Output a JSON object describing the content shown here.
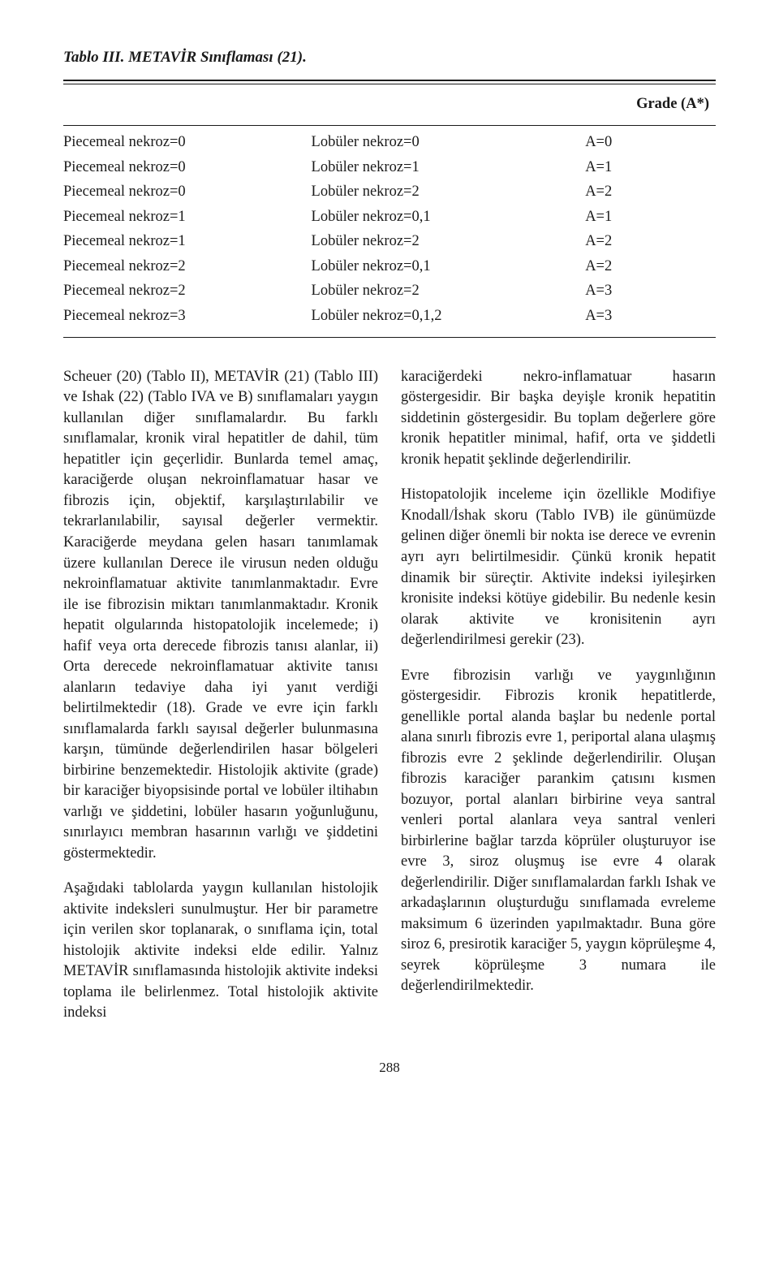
{
  "table": {
    "title_bold": "Tablo III.",
    "title_rest": " METAVİR Sınıflaması (21).",
    "grade_header": "Grade (A*)",
    "rows": [
      {
        "c1": "Piecemeal nekroz=0",
        "c2": "Lobüler nekroz=0",
        "c3": "A=0"
      },
      {
        "c1": "Piecemeal nekroz=0",
        "c2": "Lobüler nekroz=1",
        "c3": "A=1"
      },
      {
        "c1": "Piecemeal nekroz=0",
        "c2": "Lobüler nekroz=2",
        "c3": "A=2"
      },
      {
        "c1": "Piecemeal nekroz=1",
        "c2": "Lobüler nekroz=0,1",
        "c3": "A=1"
      },
      {
        "c1": "Piecemeal nekroz=1",
        "c2": "Lobüler nekroz=2",
        "c3": "A=2"
      },
      {
        "c1": "Piecemeal nekroz=2",
        "c2": "Lobüler nekroz=0,1",
        "c3": "A=2"
      },
      {
        "c1": "Piecemeal nekroz=2",
        "c2": "Lobüler nekroz=2",
        "c3": "A=3"
      },
      {
        "c1": "Piecemeal nekroz=3",
        "c2": "Lobüler nekroz=0,1,2",
        "c3": "A=3"
      }
    ]
  },
  "body": {
    "left": {
      "p1": "Scheuer (20) (Tablo II), METAVİR (21) (Tablo III) ve Ishak (22) (Tablo IVA ve B) sınıflamaları yaygın kullanılan diğer sınıflamalardır. Bu farklı sınıflamalar, kronik viral hepatitler de dahil, tüm hepatitler için geçerlidir. Bunlarda temel amaç, karaciğerde oluşan nekroinflamatuar hasar ve fibrozis için, objektif, karşılaştırılabilir ve tekrarlanılabilir, sayısal değerler vermektir. Karaciğerde meydana gelen hasarı tanımlamak üzere kullanılan Derece ile virusun neden olduğu nekroinflamatuar aktivite tanımlanmaktadır. Evre ile ise fibrozisin miktarı tanımlanmaktadır. Kronik hepatit olgularında histopatolojik incelemede; i) hafif veya orta derecede fibrozis tanısı alanlar, ii) Orta derecede nekroinflamatuar aktivite tanısı alanların tedaviye daha iyi yanıt verdiği belirtilmektedir (18). Grade ve evre için farklı sınıflamalarda farklı sayısal değerler bulunmasına karşın, tümünde değerlendirilen hasar bölgeleri birbirine benzemektedir. Histolojik aktivite (grade) bir karaciğer biyopsisinde portal ve lobüler iltihabın varlığı ve şiddetini, lobüler hasarın yoğunluğunu, sınırlayıcı membran hasarının varlığı ve şiddetini göstermektedir.",
      "p2": "Aşağıdaki tablolarda yaygın kullanılan histolojik aktivite indeksleri sunulmuştur. Her bir parametre için verilen skor toplanarak, o sınıflama için, total histolojik aktivite indeksi elde edilir. Yalnız METAVİR sınıflamasında histolojik aktivite indeksi toplama ile belirlenmez. Total histolojik aktivite indeksi"
    },
    "right": {
      "p1": "karaciğerdeki nekro-inflamatuar hasarın göstergesidir. Bir başka deyişle kronik hepatitin siddetinin göstergesidir. Bu toplam değerlere göre kronik hepatitler minimal, hafif, orta ve şiddetli kronik hepatit şeklinde değerlendirilir.",
      "p2": "Histopatolojik inceleme için özellikle Modifiye Knodall/İshak skoru (Tablo IVB) ile günümüzde gelinen diğer önemli bir nokta ise derece ve evrenin ayrı ayrı belirtilmesidir. Çünkü kronik hepatit dinamik bir süreçtir. Aktivite indeksi iyileşirken kronisite indeksi kötüye gidebilir. Bu nedenle kesin olarak aktivite ve kronisitenin ayrı değerlendirilmesi gerekir (23).",
      "p3": "Evre fibrozisin varlığı ve yaygınlığının göstergesidir. Fibrozis kronik hepatitlerde, genellikle portal alanda başlar bu nedenle portal alana sınırlı fibrozis evre 1, periportal alana ulaşmış fibrozis evre 2 şeklinde değerlendirilir. Oluşan fibrozis karaciğer parankim çatısını kısmen bozuyor, portal alanları birbirine veya santral venleri portal alanlara veya santral venleri birbirlerine bağlar tarzda köprüler oluşturuyor ise evre 3, siroz oluşmuş ise evre 4 olarak değerlendirilir. Diğer sınıflamalardan farklı Ishak ve arkadaşlarının oluşturduğu sınıflamada evreleme maksimum 6 üzerinden yapılmaktadır. Buna göre siroz 6, presirotik karaciğer 5, yaygın köprüleşme 4, seyrek köprüleşme 3 numara ile değerlendirilmektedir."
    }
  },
  "page_number": "288"
}
